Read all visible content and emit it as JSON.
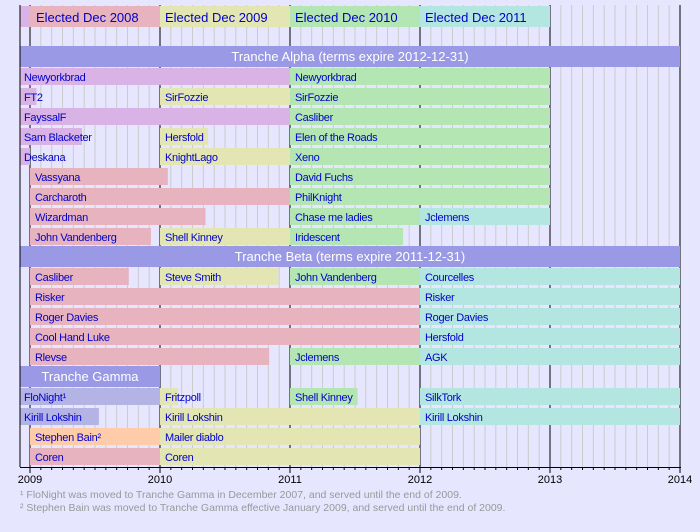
{
  "chart_data": {
    "type": "timeline",
    "xlim": [
      2008.92,
      2014
    ],
    "x_ticks": [
      "2009",
      "2010",
      "2011",
      "2012",
      "2013",
      "2014"
    ],
    "grid": "monthly vertical lines, yearly black lines",
    "colors": {
      "background": "#e6e6ff",
      "band": "#9999e6",
      "elected_2007": "#d9b3e6",
      "elected_2008": "#e6b3bf",
      "elected_2009": "#e3e6b3",
      "elected_2010": "#b3e6b3",
      "elected_2011": "#b3e6e0",
      "gamma": "#b3b3e6",
      "bain": "#ffccaa",
      "label": "#0000cc"
    },
    "legend": [
      {
        "label": "Elected Dec 2008",
        "color": "elected_2008",
        "start": 2009.0,
        "end": 2010.0
      },
      {
        "label": "Elected Dec 2009",
        "color": "elected_2009",
        "start": 2010.0,
        "end": 2011.0
      },
      {
        "label": "Elected Dec 2010",
        "color": "elected_2010",
        "start": 2011.0,
        "end": 2012.0
      },
      {
        "label": "Elected Dec 2011",
        "color": "elected_2011",
        "start": 2012.0,
        "end": 2013.0
      }
    ],
    "tranches": [
      {
        "title": "Tranche Alpha (terms expire 2012-12-31)",
        "band_end": 2014,
        "rows": [
          [
            {
              "name": "Newyorkbrad",
              "color": "elected_2007",
              "start": 2008.92,
              "end": 2011.0
            },
            {
              "name": "Newyorkbrad",
              "color": "elected_2010",
              "start": 2011.0,
              "end": 2013.0
            }
          ],
          [
            {
              "name": "FT2",
              "color": "elected_2007",
              "start": 2008.92,
              "end": 2009.05
            },
            {
              "name": "SirFozzie",
              "color": "elected_2009",
              "start": 2010.0,
              "end": 2011.0
            },
            {
              "name": "SirFozzie",
              "color": "elected_2010",
              "start": 2011.0,
              "end": 2013.0
            }
          ],
          [
            {
              "name": "FayssalF",
              "color": "elected_2007",
              "start": 2008.92,
              "end": 2011.0
            },
            {
              "name": "Casliber",
              "color": "elected_2010",
              "start": 2011.0,
              "end": 2013.0
            }
          ],
          [
            {
              "name": "Sam Blacketer",
              "color": "elected_2007",
              "start": 2008.92,
              "end": 2009.4
            },
            {
              "name": "Hersfold",
              "color": "elected_2009",
              "start": 2010.0,
              "end": 2010.37
            },
            {
              "name": "Elen of the Roads",
              "color": "elected_2010",
              "start": 2011.0,
              "end": 2013.0
            }
          ],
          [
            {
              "name": "Deskana",
              "color": "elected_2007",
              "start": 2008.92,
              "end": 2009.0
            },
            {
              "name": "KnightLago",
              "color": "elected_2009",
              "start": 2010.0,
              "end": 2011.0
            },
            {
              "name": "Xeno",
              "color": "elected_2010",
              "start": 2011.0,
              "end": 2013.0
            }
          ],
          [
            {
              "name": "Vassyana",
              "color": "elected_2008",
              "start": 2009.0,
              "end": 2010.06
            },
            {
              "name": "David Fuchs",
              "color": "elected_2010",
              "start": 2011.0,
              "end": 2013.0
            }
          ],
          [
            {
              "name": "Carcharoth",
              "color": "elected_2008",
              "start": 2009.0,
              "end": 2011.0
            },
            {
              "name": "PhilKnight",
              "color": "elected_2010",
              "start": 2011.0,
              "end": 2013.0
            }
          ],
          [
            {
              "name": "Wizardman",
              "color": "elected_2008",
              "start": 2009.0,
              "end": 2010.35
            },
            {
              "name": "Chase me ladies",
              "color": "elected_2010",
              "start": 2011.0,
              "end": 2012.0
            },
            {
              "name": "Jclemens",
              "color": "elected_2011",
              "start": 2012.0,
              "end": 2013.0
            }
          ],
          [
            {
              "name": "John Vandenberg",
              "color": "elected_2008",
              "start": 2009.0,
              "end": 2009.93
            },
            {
              "name": "Shell Kinney",
              "color": "elected_2009",
              "start": 2010.0,
              "end": 2011.0
            },
            {
              "name": "Iridescent",
              "color": "elected_2010",
              "start": 2011.0,
              "end": 2011.87
            }
          ]
        ]
      },
      {
        "title": "Tranche Beta (terms expire 2011-12-31)",
        "band_end": 2014,
        "rows": [
          [
            {
              "name": "Casliber",
              "color": "elected_2008",
              "start": 2009.0,
              "end": 2009.76
            },
            {
              "name": "Steve Smith",
              "color": "elected_2009",
              "start": 2010.0,
              "end": 2010.91
            },
            {
              "name": "John Vandenberg",
              "color": "elected_2010",
              "start": 2011.0,
              "end": 2012.0
            },
            {
              "name": "Courcelles",
              "color": "elected_2011",
              "start": 2012.0,
              "end": 2014.0
            }
          ],
          [
            {
              "name": "Risker",
              "color": "elected_2008",
              "start": 2009.0,
              "end": 2012.0
            },
            {
              "name": "Risker",
              "color": "elected_2011",
              "start": 2012.0,
              "end": 2014.0
            }
          ],
          [
            {
              "name": "Roger Davies",
              "color": "elected_2008",
              "start": 2009.0,
              "end": 2012.0
            },
            {
              "name": "Roger Davies",
              "color": "elected_2011",
              "start": 2012.0,
              "end": 2014.0
            }
          ],
          [
            {
              "name": "Cool Hand Luke",
              "color": "elected_2008",
              "start": 2009.0,
              "end": 2012.0
            },
            {
              "name": "Hersfold",
              "color": "elected_2011",
              "start": 2012.0,
              "end": 2014.0
            }
          ],
          [
            {
              "name": "Rlevse",
              "color": "elected_2008",
              "start": 2009.0,
              "end": 2010.84
            },
            {
              "name": "Jclemens",
              "color": "elected_2010",
              "start": 2011.0,
              "end": 2012.0
            },
            {
              "name": "AGK",
              "color": "elected_2011",
              "start": 2012.0,
              "end": 2014.0
            }
          ]
        ]
      },
      {
        "title": "Tranche Gamma",
        "band_end": 2010,
        "rows": [
          [
            {
              "name": "FloNight¹",
              "color": "gamma",
              "start": 2008.92,
              "end": 2010.0
            },
            {
              "name": "Fritzpoll",
              "color": "elected_2009",
              "start": 2010.0,
              "end": 2010.14
            },
            {
              "name": "Shell Kinney",
              "color": "elected_2010",
              "start": 2011.0,
              "end": 2011.52
            },
            {
              "name": "SilkTork",
              "color": "elected_2011",
              "start": 2012.0,
              "end": 2014.0
            }
          ],
          [
            {
              "name": "Kirill Lokshin",
              "color": "gamma",
              "start": 2008.92,
              "end": 2009.53
            },
            {
              "name": "Kirill Lokshin",
              "color": "elected_2009",
              "start": 2010.0,
              "end": 2012.0
            },
            {
              "name": "Kirill Lokshin",
              "color": "elected_2011",
              "start": 2012.0,
              "end": 2014.0
            }
          ],
          [
            {
              "name": "Stephen Bain²",
              "color": "bain",
              "start": 2009.0,
              "end": 2010.0
            },
            {
              "name": "Mailer diablo",
              "color": "elected_2009",
              "start": 2010.0,
              "end": 2012.0
            }
          ],
          [
            {
              "name": "Coren",
              "color": "elected_2008",
              "start": 2009.0,
              "end": 2010.0
            },
            {
              "name": "Coren",
              "color": "elected_2009",
              "start": 2010.0,
              "end": 2012.0
            }
          ]
        ]
      }
    ],
    "footnotes": [
      "¹ FloNight was moved to Tranche Gamma in December 2007, and served until the end of 2009.",
      "² Stephen Bain was moved to Tranche Gamma effective January 2009, and served until the end of 2009."
    ]
  }
}
